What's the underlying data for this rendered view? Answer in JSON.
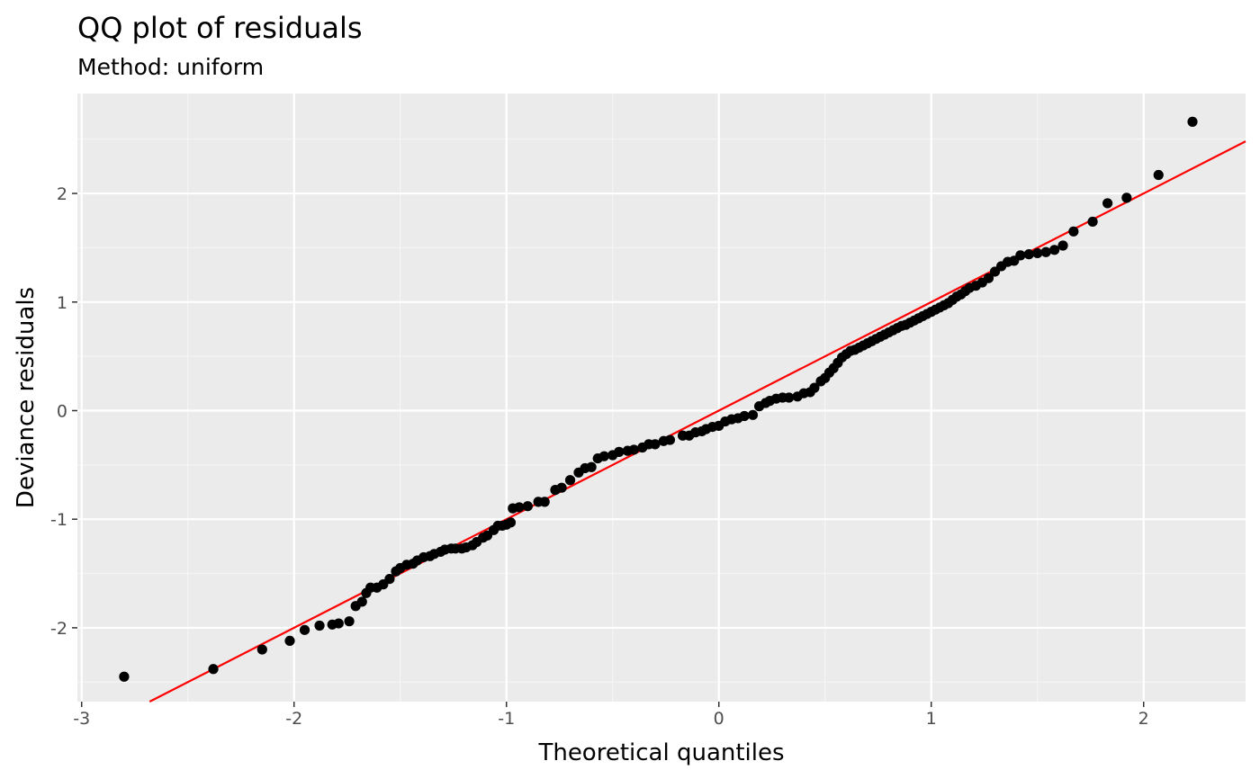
{
  "colors": {
    "panel_background": "#ebebeb",
    "grid_major": "#ffffff",
    "grid_minor": "#f5f5f5",
    "points": "#000000",
    "reference_line": "#ff0000",
    "tick_label": "#4d4d4d"
  },
  "chart_data": {
    "type": "scatter",
    "title": "QQ plot of residuals",
    "subtitle": "Method: uniform",
    "xlabel": "Theoretical quantiles",
    "ylabel": "Deviance residuals",
    "xlim": [
      -3.02,
      2.48
    ],
    "ylim": [
      -2.68,
      2.92
    ],
    "x_ticks": [
      -3,
      -2,
      -1,
      0,
      1,
      2
    ],
    "y_ticks": [
      -2,
      -1,
      0,
      1,
      2
    ],
    "x_tick_labels": [
      "-3",
      "-2",
      "-1",
      "0",
      "1",
      "2"
    ],
    "y_tick_labels": [
      "-2",
      "-1",
      "0",
      "1",
      "2"
    ],
    "grid": true,
    "legend": "none",
    "reference_line": {
      "intercept": 0.0,
      "slope": 1.0
    },
    "points": [
      {
        "x": -2.8,
        "y": -2.45
      },
      {
        "x": -2.38,
        "y": -2.38
      },
      {
        "x": -2.15,
        "y": -2.2
      },
      {
        "x": -2.02,
        "y": -2.12
      },
      {
        "x": -1.95,
        "y": -2.02
      },
      {
        "x": -1.88,
        "y": -1.98
      },
      {
        "x": -1.82,
        "y": -1.97
      },
      {
        "x": -1.79,
        "y": -1.96
      },
      {
        "x": -1.74,
        "y": -1.94
      },
      {
        "x": -1.71,
        "y": -1.8
      },
      {
        "x": -1.68,
        "y": -1.76
      },
      {
        "x": -1.66,
        "y": -1.68
      },
      {
        "x": -1.64,
        "y": -1.63
      },
      {
        "x": -1.61,
        "y": -1.63
      },
      {
        "x": -1.58,
        "y": -1.6
      },
      {
        "x": -1.55,
        "y": -1.55
      },
      {
        "x": -1.52,
        "y": -1.48
      },
      {
        "x": -1.5,
        "y": -1.45
      },
      {
        "x": -1.47,
        "y": -1.42
      },
      {
        "x": -1.44,
        "y": -1.41
      },
      {
        "x": -1.42,
        "y": -1.38
      },
      {
        "x": -1.39,
        "y": -1.35
      },
      {
        "x": -1.36,
        "y": -1.34
      },
      {
        "x": -1.34,
        "y": -1.32
      },
      {
        "x": -1.31,
        "y": -1.3
      },
      {
        "x": -1.29,
        "y": -1.28
      },
      {
        "x": -1.26,
        "y": -1.27
      },
      {
        "x": -1.24,
        "y": -1.27
      },
      {
        "x": -1.21,
        "y": -1.27
      },
      {
        "x": -1.19,
        "y": -1.26
      },
      {
        "x": -1.16,
        "y": -1.24
      },
      {
        "x": -1.14,
        "y": -1.21
      },
      {
        "x": -1.11,
        "y": -1.17
      },
      {
        "x": -1.09,
        "y": -1.15
      },
      {
        "x": -1.06,
        "y": -1.1
      },
      {
        "x": -1.04,
        "y": -1.06
      },
      {
        "x": -1.02,
        "y": -1.06
      },
      {
        "x": -1.0,
        "y": -1.05
      },
      {
        "x": -0.98,
        "y": -1.03
      },
      {
        "x": -0.97,
        "y": -0.9
      },
      {
        "x": -0.94,
        "y": -0.89
      },
      {
        "x": -0.9,
        "y": -0.88
      },
      {
        "x": -0.85,
        "y": -0.84
      },
      {
        "x": -0.82,
        "y": -0.84
      },
      {
        "x": -0.77,
        "y": -0.73
      },
      {
        "x": -0.74,
        "y": -0.71
      },
      {
        "x": -0.7,
        "y": -0.64
      },
      {
        "x": -0.66,
        "y": -0.57
      },
      {
        "x": -0.63,
        "y": -0.53
      },
      {
        "x": -0.6,
        "y": -0.52
      },
      {
        "x": -0.57,
        "y": -0.44
      },
      {
        "x": -0.54,
        "y": -0.42
      },
      {
        "x": -0.5,
        "y": -0.41
      },
      {
        "x": -0.47,
        "y": -0.38
      },
      {
        "x": -0.43,
        "y": -0.37
      },
      {
        "x": -0.4,
        "y": -0.36
      },
      {
        "x": -0.36,
        "y": -0.34
      },
      {
        "x": -0.33,
        "y": -0.31
      },
      {
        "x": -0.3,
        "y": -0.31
      },
      {
        "x": -0.26,
        "y": -0.28
      },
      {
        "x": -0.23,
        "y": -0.27
      },
      {
        "x": -0.17,
        "y": -0.23
      },
      {
        "x": -0.14,
        "y": -0.23
      },
      {
        "x": -0.11,
        "y": -0.2
      },
      {
        "x": -0.08,
        "y": -0.19
      },
      {
        "x": -0.06,
        "y": -0.17
      },
      {
        "x": -0.03,
        "y": -0.15
      },
      {
        "x": 0.0,
        "y": -0.14
      },
      {
        "x": 0.03,
        "y": -0.1
      },
      {
        "x": 0.06,
        "y": -0.08
      },
      {
        "x": 0.09,
        "y": -0.07
      },
      {
        "x": 0.12,
        "y": -0.05
      },
      {
        "x": 0.16,
        "y": -0.04
      },
      {
        "x": 0.19,
        "y": 0.04
      },
      {
        "x": 0.22,
        "y": 0.07
      },
      {
        "x": 0.24,
        "y": 0.09
      },
      {
        "x": 0.27,
        "y": 0.11
      },
      {
        "x": 0.3,
        "y": 0.12
      },
      {
        "x": 0.33,
        "y": 0.12
      },
      {
        "x": 0.37,
        "y": 0.13
      },
      {
        "x": 0.4,
        "y": 0.16
      },
      {
        "x": 0.43,
        "y": 0.17
      },
      {
        "x": 0.45,
        "y": 0.21
      },
      {
        "x": 0.48,
        "y": 0.27
      },
      {
        "x": 0.5,
        "y": 0.3
      },
      {
        "x": 0.52,
        "y": 0.35
      },
      {
        "x": 0.54,
        "y": 0.39
      },
      {
        "x": 0.56,
        "y": 0.44
      },
      {
        "x": 0.58,
        "y": 0.49
      },
      {
        "x": 0.6,
        "y": 0.52
      },
      {
        "x": 0.62,
        "y": 0.55
      },
      {
        "x": 0.64,
        "y": 0.56
      },
      {
        "x": 0.66,
        "y": 0.58
      },
      {
        "x": 0.68,
        "y": 0.6
      },
      {
        "x": 0.7,
        "y": 0.62
      },
      {
        "x": 0.72,
        "y": 0.64
      },
      {
        "x": 0.74,
        "y": 0.66
      },
      {
        "x": 0.76,
        "y": 0.68
      },
      {
        "x": 0.78,
        "y": 0.7
      },
      {
        "x": 0.8,
        "y": 0.72
      },
      {
        "x": 0.82,
        "y": 0.74
      },
      {
        "x": 0.84,
        "y": 0.76
      },
      {
        "x": 0.86,
        "y": 0.78
      },
      {
        "x": 0.88,
        "y": 0.79
      },
      {
        "x": 0.9,
        "y": 0.81
      },
      {
        "x": 0.92,
        "y": 0.83
      },
      {
        "x": 0.94,
        "y": 0.85
      },
      {
        "x": 0.96,
        "y": 0.87
      },
      {
        "x": 0.98,
        "y": 0.89
      },
      {
        "x": 1.0,
        "y": 0.91
      },
      {
        "x": 1.02,
        "y": 0.93
      },
      {
        "x": 1.04,
        "y": 0.95
      },
      {
        "x": 1.06,
        "y": 0.97
      },
      {
        "x": 1.08,
        "y": 0.99
      },
      {
        "x": 1.1,
        "y": 1.02
      },
      {
        "x": 1.12,
        "y": 1.05
      },
      {
        "x": 1.14,
        "y": 1.07
      },
      {
        "x": 1.16,
        "y": 1.1
      },
      {
        "x": 1.18,
        "y": 1.13
      },
      {
        "x": 1.21,
        "y": 1.15
      },
      {
        "x": 1.24,
        "y": 1.18
      },
      {
        "x": 1.27,
        "y": 1.22
      },
      {
        "x": 1.3,
        "y": 1.28
      },
      {
        "x": 1.33,
        "y": 1.33
      },
      {
        "x": 1.36,
        "y": 1.37
      },
      {
        "x": 1.39,
        "y": 1.38
      },
      {
        "x": 1.42,
        "y": 1.43
      },
      {
        "x": 1.46,
        "y": 1.44
      },
      {
        "x": 1.5,
        "y": 1.45
      },
      {
        "x": 1.54,
        "y": 1.46
      },
      {
        "x": 1.58,
        "y": 1.48
      },
      {
        "x": 1.62,
        "y": 1.52
      },
      {
        "x": 1.67,
        "y": 1.65
      },
      {
        "x": 1.76,
        "y": 1.74
      },
      {
        "x": 1.83,
        "y": 1.91
      },
      {
        "x": 1.92,
        "y": 1.96
      },
      {
        "x": 2.07,
        "y": 2.17
      },
      {
        "x": 2.23,
        "y": 2.66
      }
    ]
  }
}
